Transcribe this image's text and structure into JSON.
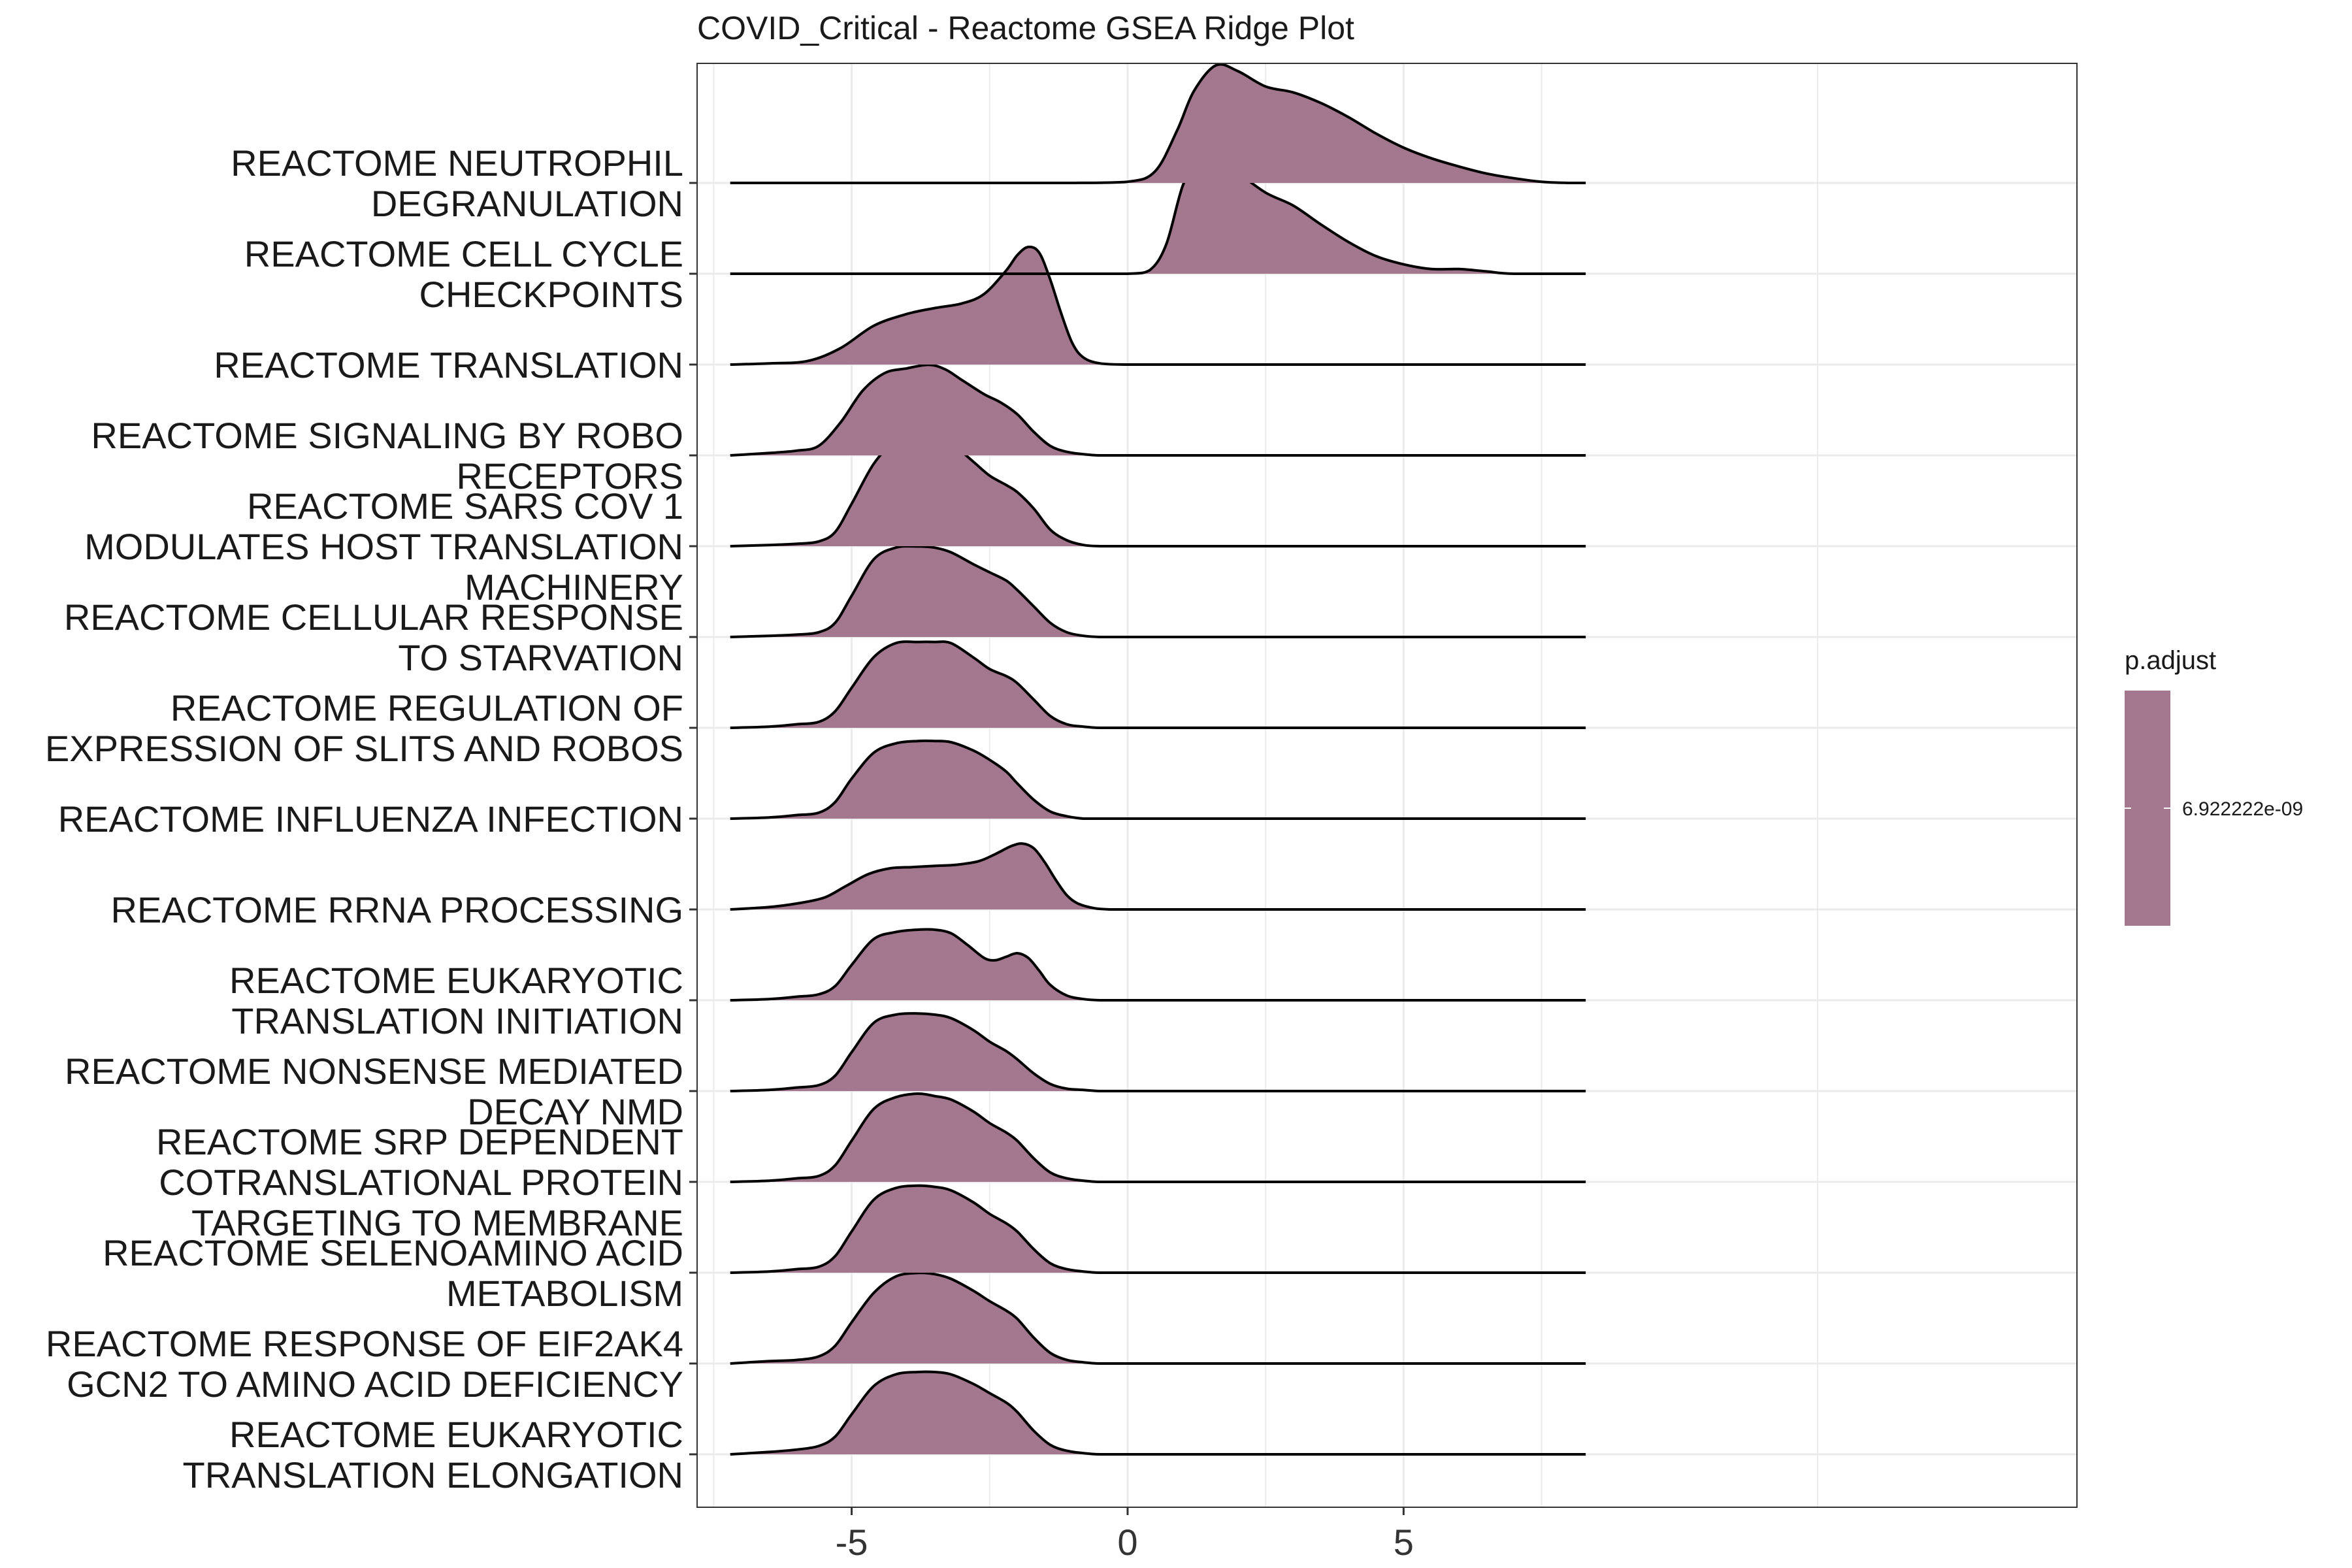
{
  "chart_data": {
    "type": "ridge",
    "title": "COVID_Critical - Reactome GSEA Ridge Plot",
    "xlabel": "",
    "ylabel": "",
    "xlim": [
      -7.8,
      17.2
    ],
    "xticks": [
      -5,
      0,
      5
    ],
    "xtick_labels": [
      "-5",
      "0",
      "5"
    ],
    "grid": true,
    "fill_color": "#a3788f",
    "legend": {
      "title": "p.adjust",
      "placement": "right",
      "labels": [
        "6.922222e-09"
      ],
      "color": "#a3788f"
    },
    "categories": [
      {
        "label": "REACTOME NEUTROPHIL DEGRANULATION",
        "lines": [
          "REACTOME NEUTROPHIL",
          "DEGRANULATION"
        ]
      },
      {
        "label": "REACTOME CELL CYCLE CHECKPOINTS",
        "lines": [
          "REACTOME CELL CYCLE",
          "CHECKPOINTS"
        ]
      },
      {
        "label": "REACTOME TRANSLATION",
        "lines": [
          "REACTOME TRANSLATION"
        ]
      },
      {
        "label": "REACTOME SIGNALING BY ROBO RECEPTORS",
        "lines": [
          "REACTOME SIGNALING BY ROBO",
          "RECEPTORS"
        ]
      },
      {
        "label": "REACTOME SARS COV 1 MODULATES HOST TRANSLATION MACHINERY",
        "lines": [
          "REACTOME SARS COV 1",
          "MODULATES HOST TRANSLATION",
          "MACHINERY"
        ]
      },
      {
        "label": "REACTOME CELLULAR RESPONSE TO STARVATION",
        "lines": [
          "REACTOME CELLULAR RESPONSE",
          "TO STARVATION"
        ]
      },
      {
        "label": "REACTOME REGULATION OF EXPRESSION OF SLITS AND ROBOS",
        "lines": [
          "REACTOME REGULATION OF",
          "EXPRESSION OF SLITS AND ROBOS"
        ]
      },
      {
        "label": "REACTOME INFLUENZA INFECTION",
        "lines": [
          "REACTOME INFLUENZA INFECTION"
        ]
      },
      {
        "label": "REACTOME RRNA PROCESSING",
        "lines": [
          "REACTOME RRNA PROCESSING"
        ]
      },
      {
        "label": "REACTOME EUKARYOTIC TRANSLATION INITIATION",
        "lines": [
          "REACTOME EUKARYOTIC",
          "TRANSLATION INITIATION"
        ]
      },
      {
        "label": "REACTOME NONSENSE MEDIATED DECAY NMD",
        "lines": [
          "REACTOME NONSENSE MEDIATED",
          "DECAY NMD"
        ]
      },
      {
        "label": "REACTOME SRP DEPENDENT COTRANSLATIONAL PROTEIN TARGETING TO MEMBRANE",
        "lines": [
          "REACTOME SRP DEPENDENT",
          "COTRANSLATIONAL PROTEIN",
          "TARGETING TO MEMBRANE"
        ]
      },
      {
        "label": "REACTOME SELENOAMINO ACID METABOLISM",
        "lines": [
          "REACTOME SELENOAMINO ACID",
          "METABOLISM"
        ]
      },
      {
        "label": "REACTOME RESPONSE OF EIF2AK4 GCN2 TO AMINO ACID DEFICIENCY",
        "lines": [
          "REACTOME RESPONSE OF EIF2AK4",
          "GCN2 TO AMINO ACID DEFICIENCY"
        ]
      },
      {
        "label": "REACTOME EUKARYOTIC TRANSLATION ELONGATION",
        "lines": [
          "REACTOME EUKARYOTIC",
          "TRANSLATION ELONGATION"
        ]
      }
    ],
    "series": [
      {
        "x": [
          -7.2,
          -6,
          -5,
          -4,
          -3,
          -2,
          -1,
          0,
          0.5,
          0.9,
          1.2,
          1.6,
          2.0,
          2.5,
          3.0,
          3.5,
          4.0,
          4.5,
          5.0,
          5.5,
          6.0,
          6.5,
          7.0,
          7.5,
          8.0,
          8.3
        ],
        "y": [
          0,
          0,
          0,
          0,
          0,
          0,
          0,
          0.01,
          0.1,
          0.45,
          0.78,
          1.0,
          0.95,
          0.82,
          0.77,
          0.68,
          0.56,
          0.42,
          0.3,
          0.21,
          0.14,
          0.08,
          0.04,
          0.01,
          0,
          0
        ]
      },
      {
        "x": [
          -7.2,
          -6,
          -5,
          -4,
          -3,
          -2,
          -1,
          0,
          0.4,
          0.7,
          1.0,
          1.3,
          1.5,
          1.7,
          2.0,
          2.5,
          3.0,
          3.5,
          4.0,
          4.5,
          5.0,
          5.5,
          6.0,
          6.5,
          7.0,
          8.3
        ],
        "y": [
          0,
          0,
          0,
          0,
          0,
          0,
          0,
          0,
          0.03,
          0.25,
          0.75,
          1.0,
          1.03,
          0.97,
          0.86,
          0.69,
          0.58,
          0.42,
          0.27,
          0.15,
          0.08,
          0.04,
          0.04,
          0.02,
          0,
          0
        ]
      },
      {
        "x": [
          -7.2,
          -6.5,
          -5.8,
          -5.2,
          -4.6,
          -4,
          -3.5,
          -3,
          -2.6,
          -2.2,
          -2.0,
          -1.8,
          -1.6,
          -1.4,
          -1.2,
          -1.0,
          -0.8,
          -0.5,
          0,
          1,
          3,
          5,
          8.3
        ],
        "y": [
          0,
          0.01,
          0.03,
          0.14,
          0.33,
          0.43,
          0.48,
          0.52,
          0.6,
          0.8,
          0.93,
          1.0,
          0.95,
          0.72,
          0.43,
          0.18,
          0.06,
          0.01,
          0,
          0,
          0,
          0,
          0
        ]
      },
      {
        "x": [
          -7.2,
          -6.5,
          -6.0,
          -5.6,
          -5.2,
          -4.8,
          -4.4,
          -4.0,
          -3.6,
          -3.3,
          -3.0,
          -2.6,
          -2.3,
          -2.0,
          -1.7,
          -1.4,
          -1.1,
          -0.8,
          -0.5,
          0,
          3,
          8.3
        ],
        "y": [
          0,
          0.02,
          0.04,
          0.08,
          0.28,
          0.55,
          0.7,
          0.74,
          0.77,
          0.73,
          0.64,
          0.52,
          0.45,
          0.35,
          0.2,
          0.08,
          0.03,
          0.01,
          0,
          0,
          0,
          0
        ]
      },
      {
        "x": [
          -7.2,
          -6.5,
          -6.0,
          -5.6,
          -5.3,
          -5.0,
          -4.6,
          -4.2,
          -3.8,
          -3.5,
          -3.2,
          -2.8,
          -2.5,
          -2.2,
          -2.0,
          -1.7,
          -1.4,
          -1.1,
          -0.8,
          -0.5,
          0,
          3,
          8.3
        ],
        "y": [
          0,
          0.01,
          0.02,
          0.04,
          0.12,
          0.36,
          0.7,
          0.9,
          0.98,
          0.96,
          0.88,
          0.72,
          0.6,
          0.52,
          0.46,
          0.32,
          0.14,
          0.05,
          0.01,
          0,
          0,
          0,
          0
        ]
      },
      {
        "x": [
          -7.2,
          -6.5,
          -6.0,
          -5.6,
          -5.3,
          -5.0,
          -4.6,
          -4.2,
          -3.8,
          -3.5,
          -3.2,
          -2.8,
          -2.5,
          -2.2,
          -2.0,
          -1.7,
          -1.4,
          -1.1,
          -0.8,
          -0.5,
          0,
          3,
          8.3
        ],
        "y": [
          0,
          0.01,
          0.02,
          0.04,
          0.12,
          0.35,
          0.66,
          0.76,
          0.77,
          0.76,
          0.72,
          0.62,
          0.55,
          0.48,
          0.4,
          0.26,
          0.12,
          0.04,
          0.01,
          0,
          0,
          0,
          0
        ]
      },
      {
        "x": [
          -7.2,
          -6.5,
          -6.0,
          -5.6,
          -5.3,
          -5.0,
          -4.6,
          -4.2,
          -3.8,
          -3.5,
          -3.2,
          -2.8,
          -2.5,
          -2.2,
          -2.0,
          -1.7,
          -1.4,
          -1.1,
          -0.8,
          -0.5,
          0,
          3,
          8.3
        ],
        "y": [
          0,
          0.01,
          0.03,
          0.05,
          0.14,
          0.34,
          0.6,
          0.72,
          0.73,
          0.73,
          0.72,
          0.6,
          0.5,
          0.44,
          0.38,
          0.24,
          0.1,
          0.03,
          0.01,
          0,
          0,
          0,
          0
        ]
      },
      {
        "x": [
          -7.2,
          -6.5,
          -6.0,
          -5.6,
          -5.3,
          -5.0,
          -4.6,
          -4.2,
          -3.8,
          -3.5,
          -3.2,
          -2.8,
          -2.5,
          -2.2,
          -2.0,
          -1.7,
          -1.4,
          -1.1,
          -0.8,
          -0.5,
          0,
          3,
          8.3
        ],
        "y": [
          0,
          0.01,
          0.03,
          0.05,
          0.14,
          0.34,
          0.56,
          0.64,
          0.66,
          0.66,
          0.65,
          0.58,
          0.5,
          0.4,
          0.3,
          0.16,
          0.06,
          0.02,
          0,
          0,
          0,
          0,
          0
        ]
      },
      {
        "x": [
          -7.2,
          -6.5,
          -6.0,
          -5.5,
          -5.1,
          -4.7,
          -4.3,
          -3.9,
          -3.5,
          -3.1,
          -2.7,
          -2.4,
          -2.1,
          -1.9,
          -1.7,
          -1.5,
          -1.3,
          -1.1,
          -0.9,
          -0.6,
          -0.3,
          0,
          3,
          8.3
        ],
        "y": [
          0,
          0.02,
          0.05,
          0.1,
          0.2,
          0.3,
          0.35,
          0.36,
          0.37,
          0.38,
          0.41,
          0.47,
          0.54,
          0.56,
          0.52,
          0.4,
          0.25,
          0.12,
          0.05,
          0.01,
          0,
          0,
          0,
          0
        ]
      },
      {
        "x": [
          -7.2,
          -6.5,
          -6.0,
          -5.6,
          -5.3,
          -5.0,
          -4.6,
          -4.2,
          -3.8,
          -3.5,
          -3.2,
          -2.9,
          -2.6,
          -2.4,
          -2.2,
          -2.0,
          -1.8,
          -1.6,
          -1.4,
          -1.1,
          -0.8,
          -0.5,
          0,
          3,
          8.3
        ],
        "y": [
          0,
          0.01,
          0.03,
          0.05,
          0.12,
          0.3,
          0.52,
          0.58,
          0.6,
          0.6,
          0.57,
          0.47,
          0.36,
          0.34,
          0.37,
          0.4,
          0.36,
          0.25,
          0.13,
          0.04,
          0.01,
          0,
          0,
          0,
          0
        ]
      },
      {
        "x": [
          -7.2,
          -6.5,
          -6.0,
          -5.6,
          -5.3,
          -5.0,
          -4.6,
          -4.2,
          -3.8,
          -3.5,
          -3.2,
          -2.8,
          -2.5,
          -2.2,
          -2.0,
          -1.7,
          -1.4,
          -1.1,
          -0.8,
          -0.5,
          0,
          3,
          8.3
        ],
        "y": [
          0,
          0.01,
          0.03,
          0.05,
          0.13,
          0.33,
          0.58,
          0.65,
          0.66,
          0.65,
          0.62,
          0.52,
          0.42,
          0.34,
          0.27,
          0.15,
          0.06,
          0.02,
          0.01,
          0,
          0,
          0,
          0
        ]
      },
      {
        "x": [
          -7.2,
          -6.5,
          -6.0,
          -5.6,
          -5.3,
          -5.0,
          -4.6,
          -4.2,
          -3.8,
          -3.5,
          -3.2,
          -2.8,
          -2.5,
          -2.2,
          -2.0,
          -1.7,
          -1.4,
          -1.1,
          -0.8,
          -0.5,
          0,
          3,
          8.3
        ],
        "y": [
          0,
          0.01,
          0.03,
          0.05,
          0.14,
          0.35,
          0.62,
          0.72,
          0.75,
          0.73,
          0.7,
          0.6,
          0.5,
          0.42,
          0.35,
          0.2,
          0.08,
          0.03,
          0.01,
          0,
          0,
          0,
          0
        ]
      },
      {
        "x": [
          -7.2,
          -6.5,
          -6.0,
          -5.6,
          -5.3,
          -5.0,
          -4.6,
          -4.2,
          -3.8,
          -3.5,
          -3.2,
          -2.8,
          -2.5,
          -2.2,
          -2.0,
          -1.7,
          -1.4,
          -1.1,
          -0.8,
          -0.5,
          0,
          3,
          8.3
        ],
        "y": [
          0,
          0.01,
          0.03,
          0.05,
          0.14,
          0.35,
          0.62,
          0.72,
          0.74,
          0.73,
          0.7,
          0.6,
          0.5,
          0.42,
          0.35,
          0.2,
          0.08,
          0.03,
          0.01,
          0,
          0,
          0,
          0
        ]
      },
      {
        "x": [
          -7.2,
          -6.5,
          -6.0,
          -5.6,
          -5.3,
          -5.0,
          -4.6,
          -4.2,
          -3.8,
          -3.5,
          -3.2,
          -2.8,
          -2.5,
          -2.2,
          -2.0,
          -1.7,
          -1.4,
          -1.1,
          -0.8,
          -0.5,
          0,
          3,
          8.3
        ],
        "y": [
          0,
          0.02,
          0.03,
          0.06,
          0.15,
          0.35,
          0.6,
          0.74,
          0.77,
          0.76,
          0.72,
          0.62,
          0.53,
          0.45,
          0.38,
          0.22,
          0.09,
          0.03,
          0.01,
          0,
          0,
          0,
          0
        ]
      },
      {
        "x": [
          -7.2,
          -6.5,
          -6.0,
          -5.6,
          -5.3,
          -5.0,
          -4.6,
          -4.2,
          -3.8,
          -3.5,
          -3.2,
          -2.8,
          -2.5,
          -2.2,
          -2.0,
          -1.7,
          -1.4,
          -1.1,
          -0.8,
          -0.5,
          0,
          3,
          8.3
        ],
        "y": [
          0,
          0.02,
          0.04,
          0.07,
          0.15,
          0.34,
          0.58,
          0.68,
          0.7,
          0.7,
          0.68,
          0.6,
          0.52,
          0.44,
          0.36,
          0.2,
          0.08,
          0.03,
          0.01,
          0,
          0,
          0,
          0
        ]
      }
    ]
  }
}
